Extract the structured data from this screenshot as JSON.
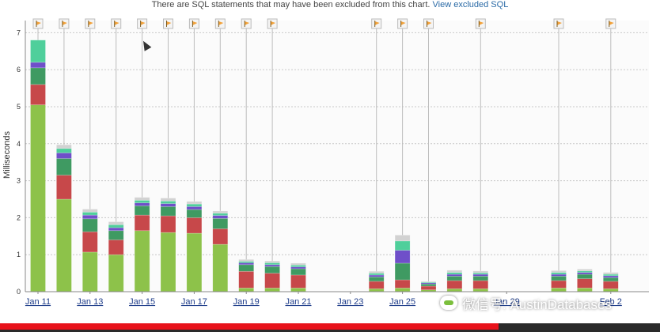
{
  "notice": {
    "text": "There are SQL statements that may have been excluded from this chart.",
    "link_label": "View excluded SQL"
  },
  "watermark": {
    "text": "微信号: AustinDatabases"
  },
  "video_progress": 0.755,
  "colors": {
    "series": [
      "#8dc24a",
      "#c7484a",
      "#3f9a62",
      "#6f4fc9",
      "#4fcf9b",
      "#d2d2d2"
    ],
    "flag": "#f2a23a",
    "marker_line": "#bdbdbd",
    "grid": "#c8c8c8",
    "link": "#2a6aa6"
  },
  "chart_data": {
    "type": "bar",
    "stacked": true,
    "ylabel": "Milliseconds",
    "ylim": [
      0,
      7.2
    ],
    "yticks": [
      0,
      1,
      2,
      3,
      4,
      5,
      6,
      7
    ],
    "grid": "horizontal dashed",
    "x_tick_labels": [
      "Jan 11",
      "Jan 13",
      "Jan 15",
      "Jan 17",
      "Jan 19",
      "Jan 21",
      "Jan 23",
      "Jan 25",
      "Jan 29",
      "Feb 2"
    ],
    "series": [
      {
        "values": [
          5.05,
          2.5,
          1.07,
          1.0,
          1.65,
          1.6,
          1.58,
          1.28,
          0.1,
          0.1,
          0.1,
          0.08,
          0.1,
          0.05,
          0.08,
          0.08,
          0.1,
          0.1,
          0.08
        ]
      },
      {
        "values": [
          0.55,
          0.65,
          0.55,
          0.4,
          0.42,
          0.45,
          0.42,
          0.42,
          0.45,
          0.4,
          0.35,
          0.2,
          0.22,
          0.1,
          0.22,
          0.22,
          0.2,
          0.25,
          0.2
        ]
      },
      {
        "values": [
          0.45,
          0.45,
          0.35,
          0.25,
          0.25,
          0.25,
          0.22,
          0.28,
          0.18,
          0.18,
          0.17,
          0.12,
          0.45,
          0.06,
          0.12,
          0.12,
          0.12,
          0.12,
          0.1
        ]
      },
      {
        "values": [
          0.15,
          0.15,
          0.1,
          0.08,
          0.08,
          0.08,
          0.08,
          0.08,
          0.05,
          0.05,
          0.05,
          0.05,
          0.35,
          0.03,
          0.05,
          0.05,
          0.05,
          0.05,
          0.05
        ]
      },
      {
        "values": [
          0.6,
          0.12,
          0.08,
          0.08,
          0.07,
          0.07,
          0.07,
          0.06,
          0.04,
          0.05,
          0.05,
          0.05,
          0.25,
          0.02,
          0.05,
          0.04,
          0.05,
          0.04,
          0.04
        ]
      },
      {
        "values": [
          0.0,
          0.1,
          0.08,
          0.08,
          0.08,
          0.08,
          0.07,
          0.06,
          0.05,
          0.05,
          0.05,
          0.05,
          0.16,
          0.02,
          0.06,
          0.05,
          0.05,
          0.05,
          0.05
        ]
      }
    ],
    "bar_dates": [
      "Jan 11",
      "Jan 12",
      "Jan 13",
      "Jan 14",
      "Jan 15",
      "Jan 16",
      "Jan 17",
      "Jan 18",
      "Jan 19",
      "Jan 20",
      "Jan 21",
      "Jan 24",
      "Jan 25",
      "Jan 26",
      "Jan 27",
      "Jan 28",
      "Jan 31",
      "Feb 1",
      "Feb 2"
    ],
    "flag_marker_dates": [
      "Jan 11",
      "Jan 12",
      "Jan 13",
      "Jan 14",
      "Jan 15",
      "Jan 16",
      "Jan 17",
      "Jan 18",
      "Jan 19",
      "Jan 20",
      "Jan 24",
      "Jan 25",
      "Jan 26",
      "Jan 28",
      "Jan 31",
      "Feb 2"
    ],
    "axis_dates": [
      "Jan 11",
      "Jan 12",
      "Jan 13",
      "Jan 14",
      "Jan 15",
      "Jan 16",
      "Jan 17",
      "Jan 18",
      "Jan 19",
      "Jan 20",
      "Jan 21",
      "Jan 22",
      "Jan 23",
      "Jan 24",
      "Jan 25",
      "Jan 26",
      "Jan 27",
      "Jan 28",
      "Jan 29",
      "Jan 30",
      "Jan 31",
      "Feb 1",
      "Feb 2",
      "Feb 3"
    ]
  }
}
